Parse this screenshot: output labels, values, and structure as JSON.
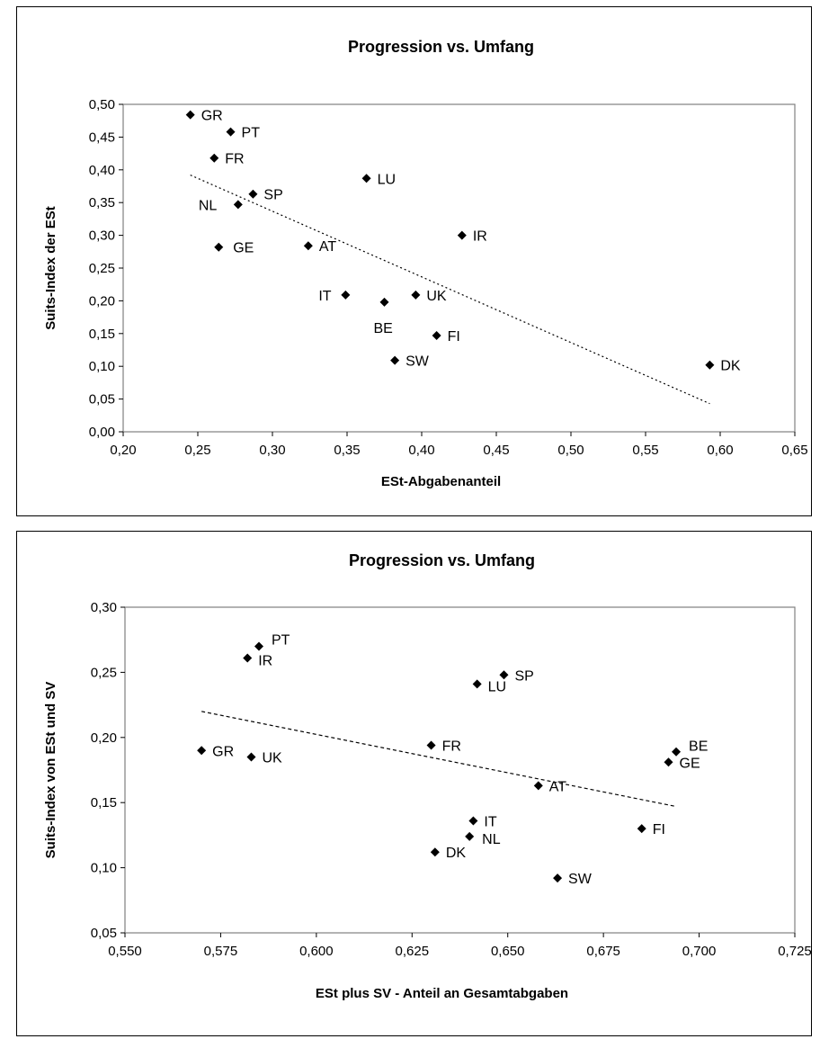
{
  "chart_data": [
    {
      "type": "scatter",
      "title": "Progression vs. Umfang",
      "xlabel": "ESt-Abgabenanteil",
      "ylabel": "Suits-Index der ESt",
      "xlim": [
        0.2,
        0.65
      ],
      "ylim": [
        0.0,
        0.5
      ],
      "xticks": [
        "0,20",
        "0,25",
        "0,30",
        "0,35",
        "0,40",
        "0,45",
        "0,50",
        "0,55",
        "0,60",
        "0,65"
      ],
      "yticks": [
        "0,00",
        "0,05",
        "0,10",
        "0,15",
        "0,20",
        "0,25",
        "0,30",
        "0,35",
        "0,40",
        "0,45",
        "0,50"
      ],
      "trendline": {
        "style": "dotted",
        "x": [
          0.245,
          0.593
        ],
        "y": [
          0.392,
          0.043
        ]
      },
      "marker_color": "#000000",
      "points": [
        {
          "label": "GR",
          "x": 0.245,
          "y": 0.484
        },
        {
          "label": "PT",
          "x": 0.272,
          "y": 0.458
        },
        {
          "label": "FR",
          "x": 0.261,
          "y": 0.418
        },
        {
          "label": "LU",
          "x": 0.363,
          "y": 0.387
        },
        {
          "label": "SP",
          "x": 0.287,
          "y": 0.363
        },
        {
          "label": "NL",
          "x": 0.277,
          "y": 0.347
        },
        {
          "label": "IR",
          "x": 0.427,
          "y": 0.3
        },
        {
          "label": "GE",
          "x": 0.264,
          "y": 0.282
        },
        {
          "label": "AT",
          "x": 0.324,
          "y": 0.284
        },
        {
          "label": "IT",
          "x": 0.349,
          "y": 0.209
        },
        {
          "label": "UK",
          "x": 0.396,
          "y": 0.209
        },
        {
          "label": "BE",
          "x": 0.375,
          "y": 0.198
        },
        {
          "label": "FI",
          "x": 0.41,
          "y": 0.147
        },
        {
          "label": "SW",
          "x": 0.382,
          "y": 0.109
        },
        {
          "label": "DK",
          "x": 0.593,
          "y": 0.102
        }
      ]
    },
    {
      "type": "scatter",
      "title": "Progression vs. Umfang",
      "xlabel": "ESt plus SV - Anteil an Gesamtabgaben",
      "ylabel": "Suits-Index von ESt und SV",
      "xlim": [
        0.55,
        0.725
      ],
      "ylim": [
        0.05,
        0.3
      ],
      "xticks": [
        "0,550",
        "0,575",
        "0,600",
        "0,625",
        "0,650",
        "0,675",
        "0,700",
        "0,725"
      ],
      "yticks": [
        "0,05",
        "0,10",
        "0,15",
        "0,20",
        "0,25",
        "0,30"
      ],
      "trendline": {
        "style": "dashed",
        "x": [
          0.57,
          0.694
        ],
        "y": [
          0.22,
          0.147
        ]
      },
      "marker_color": "#000000",
      "points": [
        {
          "label": "PT",
          "x": 0.585,
          "y": 0.27
        },
        {
          "label": "IR",
          "x": 0.582,
          "y": 0.261
        },
        {
          "label": "SP",
          "x": 0.649,
          "y": 0.248
        },
        {
          "label": "LU",
          "x": 0.642,
          "y": 0.241
        },
        {
          "label": "FR",
          "x": 0.63,
          "y": 0.194
        },
        {
          "label": "GR",
          "x": 0.57,
          "y": 0.19
        },
        {
          "label": "UK",
          "x": 0.583,
          "y": 0.185
        },
        {
          "label": "BE",
          "x": 0.694,
          "y": 0.189
        },
        {
          "label": "GE",
          "x": 0.692,
          "y": 0.181
        },
        {
          "label": "AT",
          "x": 0.658,
          "y": 0.163
        },
        {
          "label": "IT",
          "x": 0.641,
          "y": 0.136
        },
        {
          "label": "FI",
          "x": 0.685,
          "y": 0.13
        },
        {
          "label": "NL",
          "x": 0.64,
          "y": 0.124
        },
        {
          "label": "DK",
          "x": 0.631,
          "y": 0.112
        },
        {
          "label": "SW",
          "x": 0.663,
          "y": 0.092
        }
      ]
    }
  ]
}
